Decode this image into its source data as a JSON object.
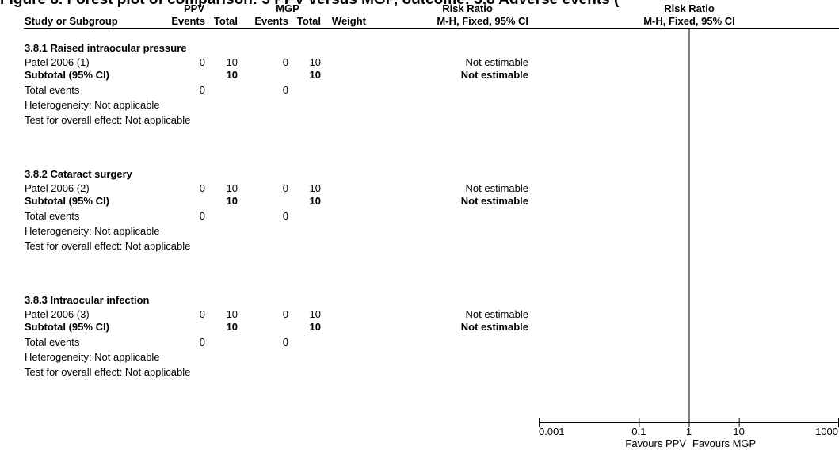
{
  "figure_title": "Figure 8. Forest plot of comparison: 3 PPV versus MGP, outcome: 3.8 Adverse events (",
  "headers": {
    "group_ppv": "PPV",
    "group_mgp": "MGP",
    "risk_ratio_left": "Risk Ratio",
    "risk_ratio_right": "Risk Ratio",
    "study": "Study or Subgroup",
    "events1": "Events",
    "total1": "Total",
    "events2": "Events",
    "total2": "Total",
    "weight": "Weight",
    "method_left": "M-H, Fixed, 95% CI",
    "method_right": "M-H, Fixed, 95% CI"
  },
  "subgroups": [
    {
      "title": "3.8.1 Raised intraocular pressure",
      "study": {
        "name": "Patel 2006 (1)",
        "e1": "0",
        "t1": "10",
        "e2": "0",
        "t2": "10",
        "rr": "Not estimable"
      },
      "subtotal": {
        "label": "Subtotal (95% CI)",
        "t1": "10",
        "t2": "10",
        "rr": "Not estimable"
      },
      "total_events": {
        "label": "Total events",
        "e1": "0",
        "e2": "0"
      },
      "heterogeneity": "Heterogeneity: Not applicable",
      "overall_effect": "Test for overall effect: Not applicable"
    },
    {
      "title": "3.8.2 Cataract surgery",
      "study": {
        "name": "Patel 2006 (2)",
        "e1": "0",
        "t1": "10",
        "e2": "0",
        "t2": "10",
        "rr": "Not estimable"
      },
      "subtotal": {
        "label": "Subtotal (95% CI)",
        "t1": "10",
        "t2": "10",
        "rr": "Not estimable"
      },
      "total_events": {
        "label": "Total events",
        "e1": "0",
        "e2": "0"
      },
      "heterogeneity": "Heterogeneity: Not applicable",
      "overall_effect": "Test for overall effect: Not applicable"
    },
    {
      "title": "3.8.3 Intraocular infection",
      "study": {
        "name": "Patel 2006 (3)",
        "e1": "0",
        "t1": "10",
        "e2": "0",
        "t2": "10",
        "rr": "Not estimable"
      },
      "subtotal": {
        "label": "Subtotal (95% CI)",
        "t1": "10",
        "t2": "10",
        "rr": "Not estimable"
      },
      "total_events": {
        "label": "Total events",
        "e1": "0",
        "e2": "0"
      },
      "heterogeneity": "Heterogeneity: Not applicable",
      "overall_effect": "Test for overall effect: Not applicable"
    }
  ],
  "chart_data": {
    "type": "forest",
    "scale": "log",
    "xlim": [
      0.001,
      1000
    ],
    "ticks": [
      {
        "value": 0.001,
        "label": "0.001"
      },
      {
        "value": 0.1,
        "label": "0.1"
      },
      {
        "value": 1,
        "label": "1"
      },
      {
        "value": 10,
        "label": "10"
      },
      {
        "value": 1000,
        "label": "1000"
      }
    ],
    "null_line": 1,
    "favours_left": "Favours PPV",
    "favours_right": "Favours MGP",
    "estimates": []
  }
}
